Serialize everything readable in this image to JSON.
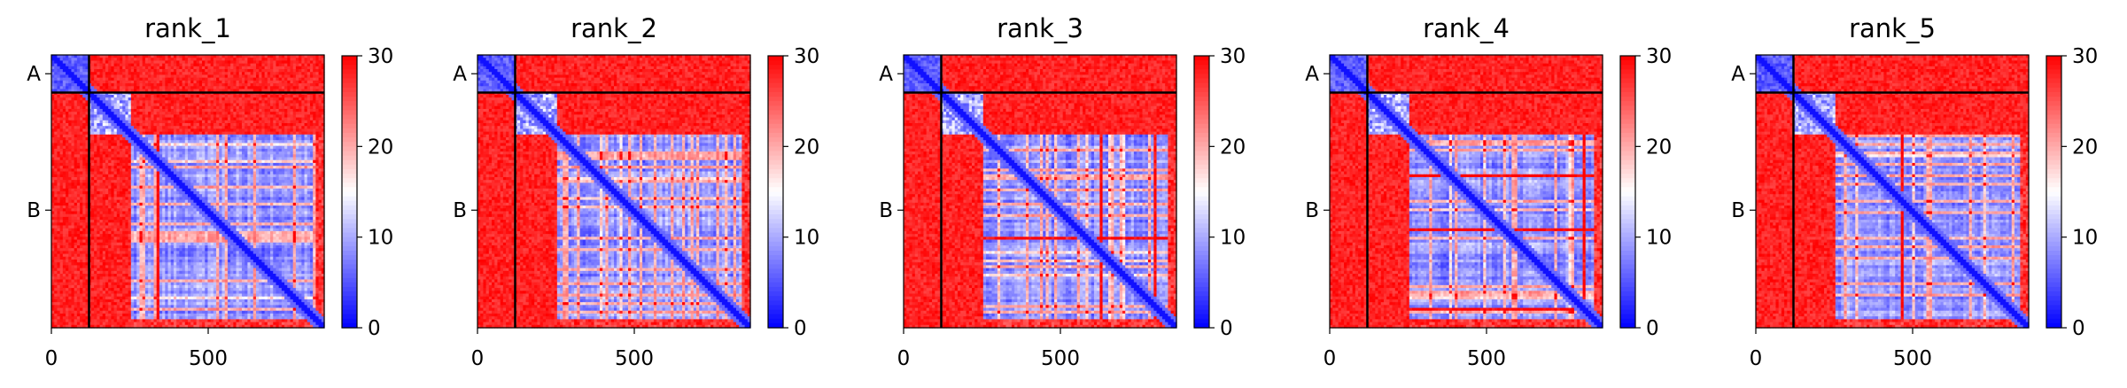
{
  "figure": {
    "background": "#ffffff"
  },
  "chart_data": [
    {
      "type": "heatmap",
      "title": "rank_1",
      "xlabel": "",
      "ylabel": "",
      "xlim": [
        0,
        870
      ],
      "x_ticks": [
        0,
        500
      ],
      "y_chain_labels": [
        "A",
        "B"
      ],
      "chain_lengths": {
        "A": 120,
        "B": 750
      },
      "chain_boundary": 120,
      "colorbar": {
        "min": 0,
        "max": 30,
        "ticks": [
          0,
          10,
          20,
          30
        ]
      },
      "colorscale": [
        "#0000ff",
        "#ffffff",
        "#ff0000"
      ]
    },
    {
      "type": "heatmap",
      "title": "rank_2",
      "xlabel": "",
      "ylabel": "",
      "xlim": [
        0,
        870
      ],
      "x_ticks": [
        0,
        500
      ],
      "y_chain_labels": [
        "A",
        "B"
      ],
      "chain_lengths": {
        "A": 120,
        "B": 750
      },
      "chain_boundary": 120,
      "colorbar": {
        "min": 0,
        "max": 30,
        "ticks": [
          0,
          10,
          20,
          30
        ]
      },
      "colorscale": [
        "#0000ff",
        "#ffffff",
        "#ff0000"
      ]
    },
    {
      "type": "heatmap",
      "title": "rank_3",
      "xlabel": "",
      "ylabel": "",
      "xlim": [
        0,
        870
      ],
      "x_ticks": [
        0,
        500
      ],
      "y_chain_labels": [
        "A",
        "B"
      ],
      "chain_lengths": {
        "A": 120,
        "B": 750
      },
      "chain_boundary": 120,
      "colorbar": {
        "min": 0,
        "max": 30,
        "ticks": [
          0,
          10,
          20,
          30
        ]
      },
      "colorscale": [
        "#0000ff",
        "#ffffff",
        "#ff0000"
      ]
    },
    {
      "type": "heatmap",
      "title": "rank_4",
      "xlabel": "",
      "ylabel": "",
      "xlim": [
        0,
        870
      ],
      "x_ticks": [
        0,
        500
      ],
      "y_chain_labels": [
        "A",
        "B"
      ],
      "chain_lengths": {
        "A": 120,
        "B": 750
      },
      "chain_boundary": 120,
      "colorbar": {
        "min": 0,
        "max": 30,
        "ticks": [
          0,
          10,
          20,
          30
        ]
      },
      "colorscale": [
        "#0000ff",
        "#ffffff",
        "#ff0000"
      ]
    },
    {
      "type": "heatmap",
      "title": "rank_5",
      "xlabel": "",
      "ylabel": "",
      "xlim": [
        0,
        870
      ],
      "x_ticks": [
        0,
        500
      ],
      "y_chain_labels": [
        "A",
        "B"
      ],
      "chain_lengths": {
        "A": 120,
        "B": 750
      },
      "chain_boundary": 120,
      "colorbar": {
        "min": 0,
        "max": 30,
        "ticks": [
          0,
          10,
          20,
          30
        ]
      },
      "colorscale": [
        "#0000ff",
        "#ffffff",
        "#ff0000"
      ]
    }
  ]
}
